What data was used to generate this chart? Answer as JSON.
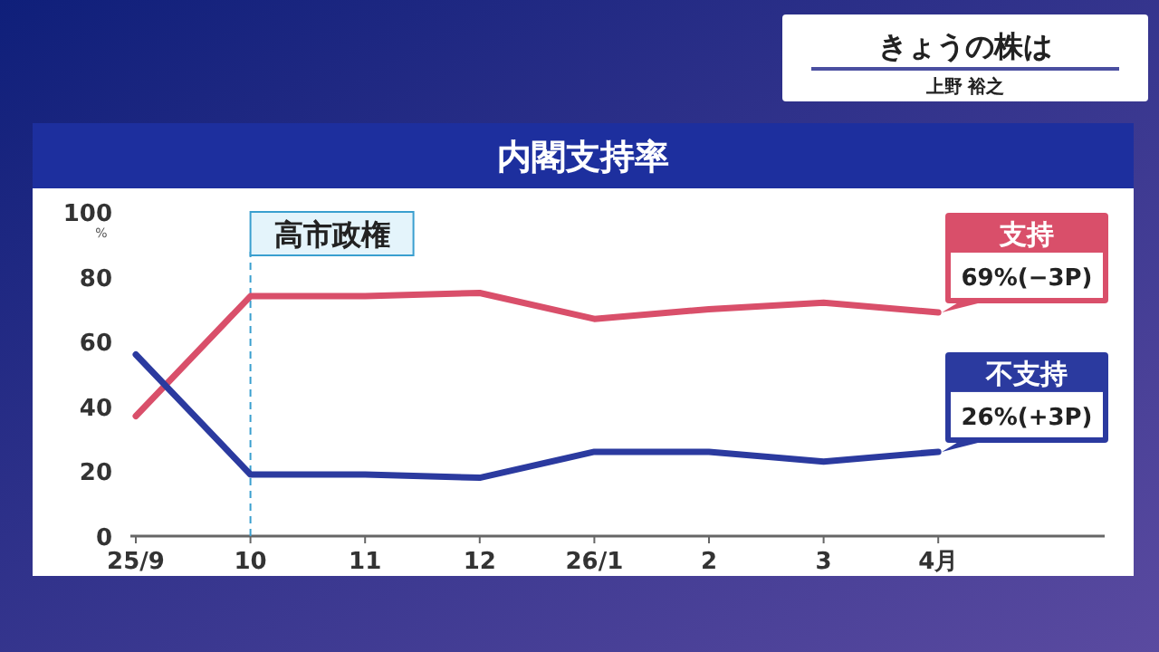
{
  "chart_data": {
    "type": "line",
    "title": "内閣支持率",
    "ylabel": "%",
    "categories": [
      "25/9",
      "10",
      "11",
      "12",
      "26/1",
      "2",
      "3",
      "4月"
    ],
    "series": [
      {
        "name": "支持",
        "color": "#d94f6a",
        "values": [
          37,
          74,
          74,
          75,
          67,
          70,
          72,
          69
        ],
        "value_labels": [
          null,
          null,
          null,
          null,
          null,
          null,
          null,
          "69%(−3P)"
        ]
      },
      {
        "name": "不支持",
        "color": "#2b3a9f",
        "values": [
          56,
          19,
          19,
          18,
          26,
          26,
          23,
          26
        ],
        "value_labels": [
          null,
          null,
          null,
          null,
          null,
          null,
          null,
          "26%(+3P)"
        ]
      }
    ],
    "ylim": [
      0,
      100
    ],
    "yticks": [
      0,
      20,
      40,
      60,
      80,
      100
    ],
    "ref_lines": [
      {
        "axis": "x",
        "value": "10",
        "label": "高市政権",
        "color": "#3a9fcf",
        "line_style": "dashed"
      }
    ],
    "annotations": [
      "きょうの株は",
      "上野 裕之"
    ],
    "grid": false,
    "legend": false,
    "marker": "none",
    "line_style": "solid"
  }
}
